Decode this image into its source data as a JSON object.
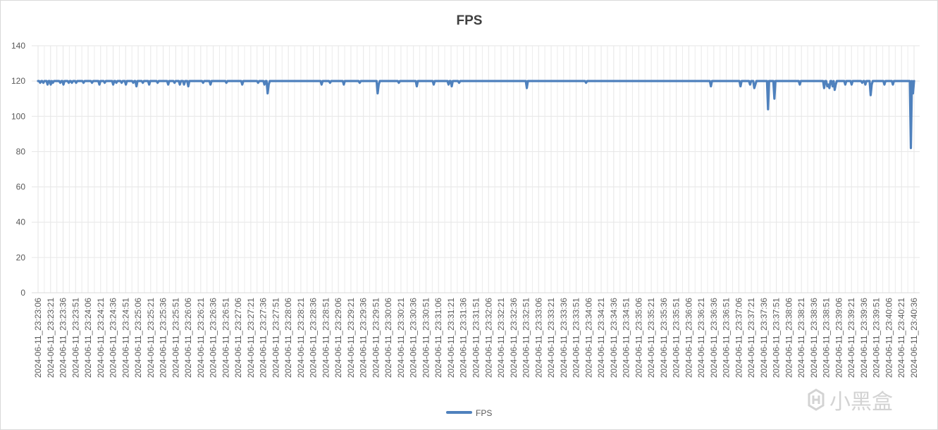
{
  "chart_data": {
    "type": "line",
    "title": "FPS",
    "xlabel": "",
    "ylabel": "",
    "ylim": [
      0,
      140
    ],
    "yticks": [
      0,
      20,
      40,
      60,
      80,
      100,
      120,
      140
    ],
    "grid": true,
    "legend_position": "bottom",
    "series": [
      {
        "name": "FPS",
        "color": "#4f81bd",
        "values": [
          120,
          120,
          119,
          120,
          120,
          119,
          120,
          120,
          120,
          118,
          120,
          120,
          118,
          120,
          119,
          120,
          120,
          120,
          120,
          120,
          120,
          119,
          120,
          120,
          118,
          120,
          120,
          120,
          120,
          119,
          120,
          120,
          119,
          120,
          120,
          120,
          119,
          120,
          120,
          120,
          120,
          120,
          120,
          119,
          120,
          120,
          120,
          120,
          120,
          120,
          120,
          119,
          120,
          120,
          120,
          120,
          120,
          120,
          118,
          120,
          120,
          120,
          120,
          119,
          120,
          120,
          120,
          120,
          120,
          120,
          120,
          118,
          120,
          120,
          119,
          120,
          120,
          120,
          120,
          119,
          120,
          120,
          120,
          118,
          120,
          120,
          120,
          120,
          120,
          120,
          119,
          120,
          120,
          117,
          120,
          120,
          120,
          120,
          120,
          119,
          120,
          120,
          120,
          120,
          120,
          118,
          120,
          120,
          120,
          120,
          120,
          120,
          120,
          119,
          120,
          120,
          120,
          120,
          120,
          120,
          120,
          120,
          120,
          118,
          120,
          120,
          120,
          120,
          120,
          119,
          120,
          120,
          120,
          120,
          118,
          120,
          120,
          120,
          118,
          120,
          120,
          120,
          117,
          120,
          120,
          120,
          120,
          120,
          120,
          120,
          120,
          120,
          120,
          120,
          120,
          120,
          119,
          120,
          120,
          120,
          120,
          120,
          120,
          118,
          120,
          120,
          120,
          120,
          120,
          120,
          120,
          120,
          120,
          120,
          120,
          120,
          120,
          120,
          119,
          120,
          120,
          120,
          120,
          120,
          120,
          120,
          120,
          120,
          120,
          120,
          120,
          120,
          120,
          118,
          120,
          120,
          120,
          120,
          120,
          120,
          120,
          120,
          120,
          120,
          120,
          120,
          120,
          120,
          119,
          120,
          120,
          120,
          120,
          120,
          118,
          120,
          120,
          113,
          118,
          120,
          120,
          120,
          120,
          120,
          120,
          120,
          120,
          120,
          120,
          120,
          120,
          120,
          120,
          120,
          120,
          120,
          120,
          120,
          120,
          120,
          120,
          120,
          120,
          120,
          120,
          120,
          120,
          120,
          120,
          120,
          120,
          120,
          120,
          120,
          120,
          120,
          120,
          120,
          120,
          120,
          120,
          120,
          120,
          120,
          120,
          120,
          120,
          120,
          118,
          120,
          120,
          120,
          120,
          120,
          120,
          120,
          119,
          120,
          120,
          120,
          120,
          120,
          120,
          120,
          120,
          120,
          120,
          120,
          120,
          118,
          120,
          120,
          120,
          120,
          120,
          120,
          120,
          120,
          120,
          120,
          120,
          120,
          120,
          120,
          119,
          120,
          120,
          120,
          120,
          120,
          120,
          120,
          120,
          120,
          120,
          120,
          120,
          120,
          120,
          120,
          120,
          113,
          118,
          120,
          120,
          120,
          120,
          120,
          120,
          120,
          120,
          120,
          120,
          120,
          120,
          120,
          120,
          120,
          120,
          120,
          120,
          119,
          120,
          120,
          120,
          120,
          120,
          120,
          120,
          120,
          120,
          120,
          120,
          120,
          120,
          120,
          120,
          120,
          117,
          120,
          120,
          120,
          120,
          120,
          120,
          120,
          120,
          120,
          120,
          120,
          120,
          120,
          120,
          120,
          118,
          120,
          120,
          120,
          120,
          120,
          120,
          120,
          120,
          120,
          120,
          120,
          120,
          120,
          118,
          120,
          120,
          117,
          120,
          120,
          120,
          120,
          120,
          120,
          119,
          120,
          120,
          120,
          120,
          120,
          120,
          120,
          120,
          120,
          120,
          120,
          120,
          120,
          120,
          120,
          120,
          120,
          120,
          120,
          120,
          120,
          120,
          120,
          120,
          120,
          120,
          120,
          120,
          120,
          120,
          120,
          120,
          120,
          120,
          120,
          120,
          120,
          120,
          120,
          120,
          120,
          120,
          120,
          120,
          120,
          120,
          120,
          120,
          120,
          120,
          120,
          120,
          120,
          120,
          120,
          120,
          120,
          120,
          120,
          120,
          120,
          120,
          120,
          116,
          120,
          120,
          120,
          120,
          120,
          120,
          120,
          120,
          120,
          120,
          120,
          120,
          120,
          120,
          120,
          120,
          120,
          120,
          120,
          120,
          120,
          120,
          120,
          120,
          120,
          120,
          120,
          120,
          120,
          120,
          120,
          120,
          120,
          120,
          120,
          120,
          120,
          120,
          120,
          120,
          120,
          120,
          120,
          120,
          120,
          120,
          120,
          120,
          120,
          120,
          120,
          120,
          120,
          120,
          120,
          119,
          120,
          120,
          120,
          120,
          120,
          120,
          120,
          120,
          120,
          120,
          120,
          120,
          120,
          120,
          120,
          120,
          120,
          120,
          120,
          120,
          120,
          120,
          120,
          120,
          120,
          120,
          120,
          120,
          120,
          120,
          120,
          120,
          120,
          120,
          120,
          120,
          120,
          120,
          120,
          120,
          120,
          120,
          120,
          120,
          120,
          120,
          120,
          120,
          120,
          120,
          120,
          120,
          120,
          120,
          120,
          120,
          120,
          120,
          120,
          120,
          120,
          120,
          120,
          120,
          120,
          120,
          120,
          120,
          120,
          120,
          120,
          120,
          120,
          120,
          120,
          120,
          120,
          120,
          120,
          120,
          120,
          120,
          120,
          120,
          120,
          120,
          120,
          120,
          120,
          120,
          120,
          120,
          120,
          120,
          120,
          120,
          120,
          120,
          120,
          120,
          120,
          120,
          120,
          120,
          120,
          120,
          120,
          120,
          120,
          120,
          120,
          120,
          120,
          120,
          120,
          120,
          120,
          117,
          120,
          120,
          120,
          120,
          120,
          120,
          120,
          120,
          120,
          120,
          120,
          120,
          120,
          120,
          120,
          120,
          120,
          120,
          120,
          120,
          120,
          120,
          120,
          120,
          120,
          120,
          120,
          117,
          120,
          120,
          120,
          120,
          120,
          120,
          120,
          120,
          118,
          120,
          120,
          120,
          116,
          118,
          120,
          120,
          120,
          120,
          120,
          120,
          120,
          120,
          120,
          120,
          120,
          104,
          120,
          120,
          120,
          120,
          120,
          110,
          120,
          120,
          120,
          120,
          120,
          120,
          120,
          120,
          120,
          120,
          120,
          120,
          120,
          120,
          120,
          120,
          120,
          120,
          120,
          120,
          120,
          120,
          120,
          118,
          120,
          120,
          120,
          120,
          120,
          120,
          120,
          120,
          120,
          120,
          120,
          120,
          120,
          120,
          120,
          120,
          120,
          120,
          120,
          120,
          120,
          120,
          116,
          120,
          120,
          117,
          118,
          116,
          120,
          120,
          117,
          120,
          115,
          118,
          120,
          120,
          120,
          120,
          120,
          120,
          120,
          120,
          118,
          120,
          120,
          120,
          120,
          120,
          118,
          120,
          120,
          120,
          120,
          120,
          120,
          120,
          120,
          120,
          119,
          120,
          120,
          118,
          120,
          120,
          120,
          120,
          112,
          118,
          120,
          120,
          120,
          120,
          120,
          120,
          120,
          120,
          120,
          120,
          120,
          118,
          120,
          120,
          120,
          120,
          120,
          120,
          120,
          118,
          120,
          120,
          120,
          120,
          120,
          120,
          120,
          120,
          120,
          120,
          120,
          120,
          120,
          120,
          120,
          120,
          82,
          120,
          113,
          120
        ]
      }
    ],
    "x_tick_labels": [
      "2024-06-11_23:23:06",
      "2024-06-11_23:23:21",
      "2024-06-11_23:23:36",
      "2024-06-11_23:23:51",
      "2024-06-11_23:24:06",
      "2024-06-11_23:24:21",
      "2024-06-11_23:24:36",
      "2024-06-11_23:24:51",
      "2024-06-11_23:25:06",
      "2024-06-11_23:25:21",
      "2024-06-11_23:25:36",
      "2024-06-11_23:25:51",
      "2024-06-11_23:26:06",
      "2024-06-11_23:26:21",
      "2024-06-11_23:26:36",
      "2024-06-11_23:26:51",
      "2024-06-11_23:27:06",
      "2024-06-11_23:27:21",
      "2024-06-11_23:27:36",
      "2024-06-11_23:27:51",
      "2024-06-11_23:28:06",
      "2024-06-11_23:28:21",
      "2024-06-11_23:28:36",
      "2024-06-11_23:28:51",
      "2024-06-11_23:29:06",
      "2024-06-11_23:29:21",
      "2024-06-11_23:29:36",
      "2024-06-11_23:29:51",
      "2024-06-11_23:30:06",
      "2024-06-11_23:30:21",
      "2024-06-11_23:30:36",
      "2024-06-11_23:30:51",
      "2024-06-11_23:31:06",
      "2024-06-11_23:31:21",
      "2024-06-11_23:31:36",
      "2024-06-11_23:31:51",
      "2024-06-11_23:32:06",
      "2024-06-11_23:32:21",
      "2024-06-11_23:32:36",
      "2024-06-11_23:32:51",
      "2024-06-11_23:33:06",
      "2024-06-11_23:33:21",
      "2024-06-11_23:33:36",
      "2024-06-11_23:33:51",
      "2024-06-11_23:34:06",
      "2024-06-11_23:34:21",
      "2024-06-11_23:34:36",
      "2024-06-11_23:34:51",
      "2024-06-11_23:35:06",
      "2024-06-11_23:35:21",
      "2024-06-11_23:35:36",
      "2024-06-11_23:35:51",
      "2024-06-11_23:36:06",
      "2024-06-11_23:36:21",
      "2024-06-11_23:36:36",
      "2024-06-11_23:36:51",
      "2024-06-11_23:37:06",
      "2024-06-11_23:37:21",
      "2024-06-11_23:37:36",
      "2024-06-11_23:37:51",
      "2024-06-11_23:38:06",
      "2024-06-11_23:38:21",
      "2024-06-11_23:38:36",
      "2024-06-11_23:38:51",
      "2024-06-11_23:39:06",
      "2024-06-11_23:39:21",
      "2024-06-11_23:39:36",
      "2024-06-11_23:39:51",
      "2024-06-11_23:40:06",
      "2024-06-11_23:40:21",
      "2024-06-11_23:40:36"
    ],
    "x_tick_step_seconds": 15,
    "samples_per_second": 1
  },
  "watermark": {
    "text": "小黑盒"
  }
}
